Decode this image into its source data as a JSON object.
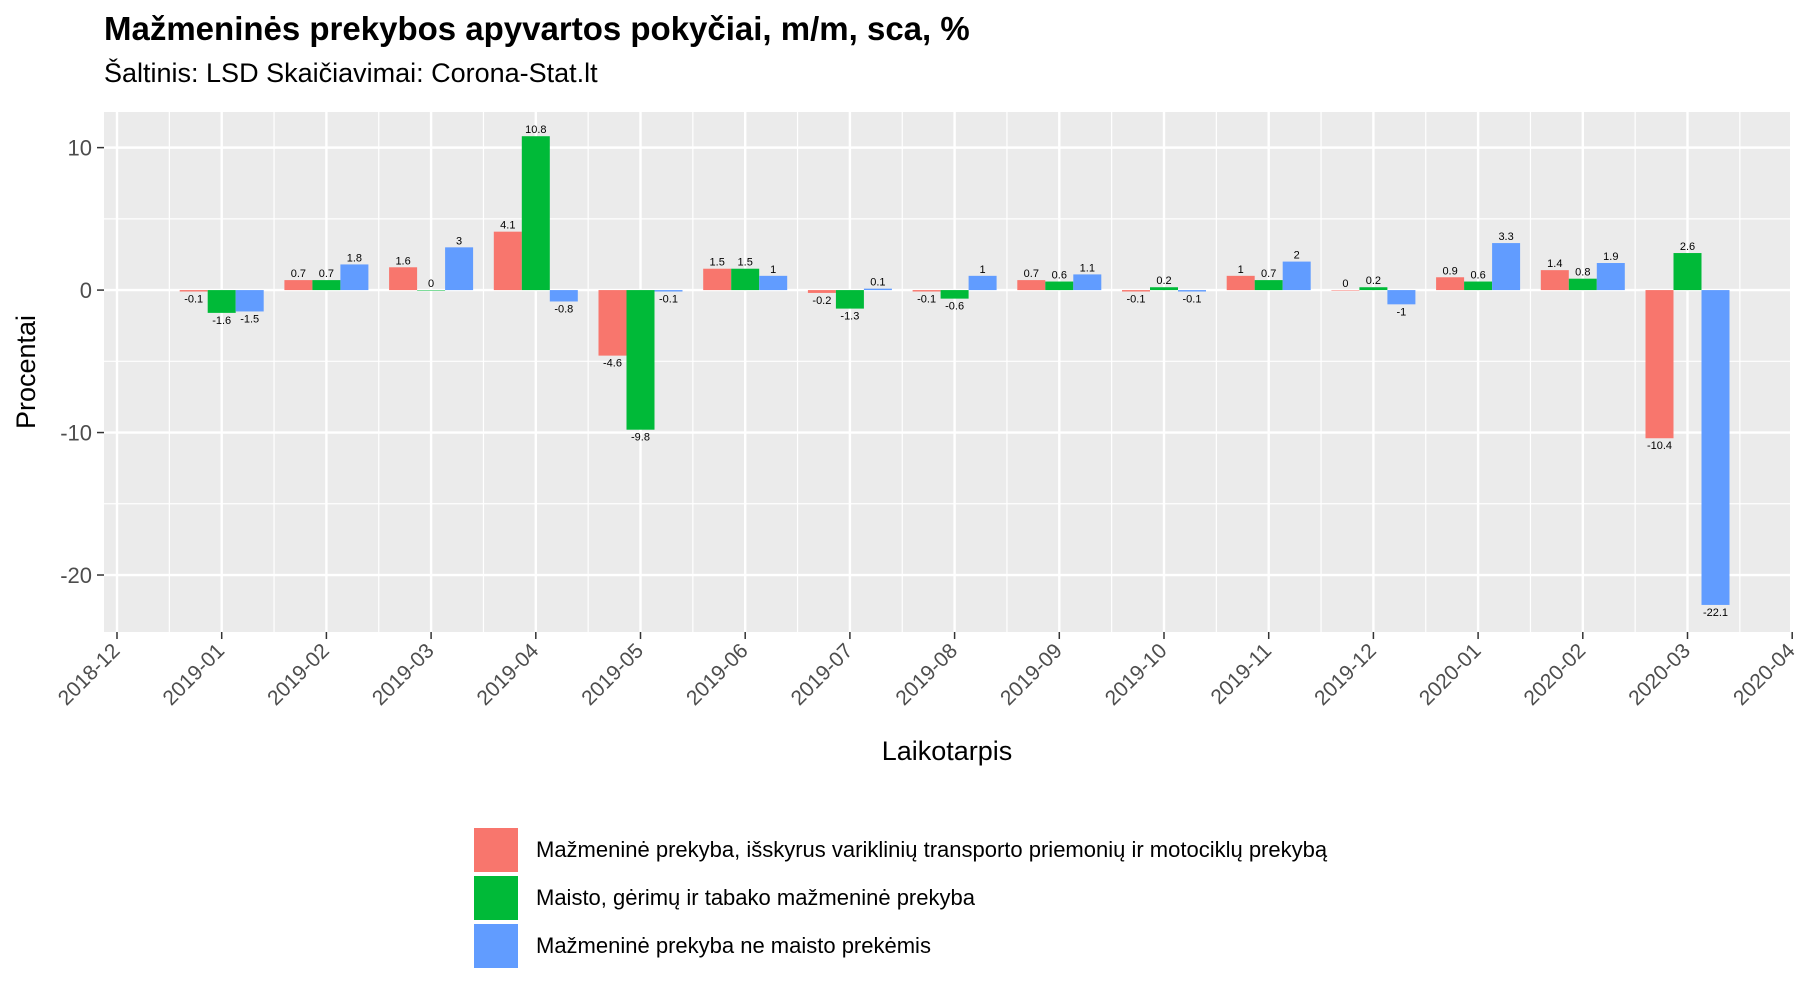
{
  "chart_data": {
    "type": "bar",
    "title": "Mažmeninės prekybos apyvartos pokyčiai, m/m, sca, %",
    "subtitle": "Šaltinis: LSD Skaičiavimai: Corona-Stat.lt",
    "xlabel": "Laikotarpis",
    "ylabel": "Procentai",
    "x_ticks": [
      "2018-12",
      "2019-01",
      "2019-02",
      "2019-03",
      "2019-04",
      "2019-05",
      "2019-06",
      "2019-07",
      "2019-08",
      "2019-09",
      "2019-10",
      "2019-11",
      "2019-12",
      "2020-01",
      "2020-02",
      "2020-03",
      "2020-04"
    ],
    "y_ticks": [
      10,
      0,
      -10,
      -20
    ],
    "ylim": [
      -24,
      12.5
    ],
    "grid": true,
    "legend_position": "bottom",
    "categories": [
      "2019-01",
      "2019-02",
      "2019-03",
      "2019-04",
      "2019-05",
      "2019-06",
      "2019-07",
      "2019-08",
      "2019-09",
      "2019-10",
      "2019-11",
      "2019-12",
      "2020-01",
      "2020-02",
      "2020-03"
    ],
    "series": [
      {
        "name": "Mažmeninė prekyba, išskyrus variklinių transporto priemonių ir motociklų prekybą",
        "color": "#F8766D",
        "values": [
          -0.1,
          0.7,
          1.6,
          4.1,
          -4.6,
          1.5,
          -0.2,
          -0.1,
          0.7,
          -0.1,
          1,
          0,
          0.9,
          1.4,
          -10.4
        ]
      },
      {
        "name": "Maisto, gėrimų ir tabako mažmeninė prekyba",
        "color": "#00BA38",
        "values": [
          -1.6,
          0.7,
          0,
          10.8,
          -9.8,
          1.5,
          -1.3,
          -0.6,
          0.6,
          0.2,
          0.7,
          0.2,
          0.6,
          0.8,
          2.6
        ]
      },
      {
        "name": "Mažmeninė prekyba ne maisto prekėmis",
        "color": "#619CFF",
        "values": [
          -1.5,
          1.8,
          3,
          -0.8,
          -0.1,
          1,
          0.1,
          1,
          1.1,
          -0.1,
          2,
          -1,
          3.3,
          1.9,
          -22.1
        ]
      }
    ]
  }
}
